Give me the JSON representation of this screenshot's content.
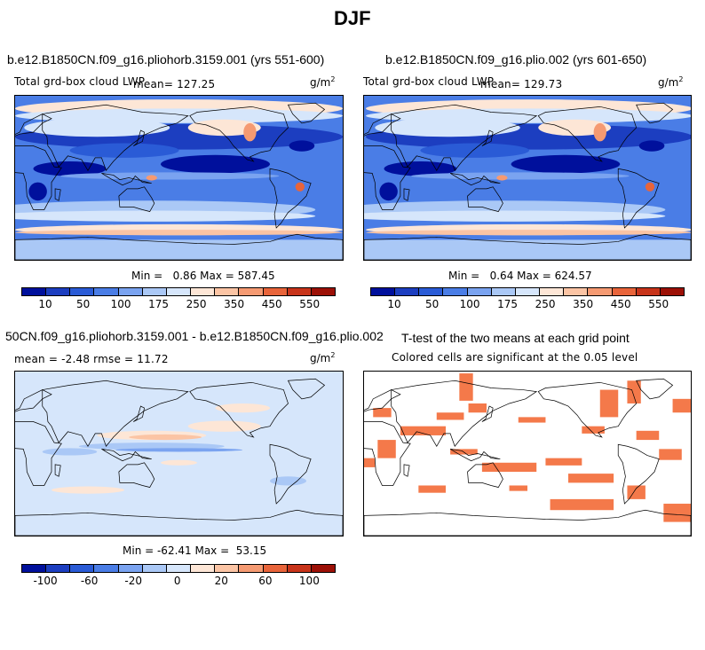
{
  "figure_title": "DJF",
  "colors": {
    "ramp": [
      "#00109c",
      "#1c3ec0",
      "#2a5bd6",
      "#4a7de6",
      "#7aa3f0",
      "#aac8f6",
      "#d6e6fb",
      "#fde6d6",
      "#fbc4a4",
      "#f59a72",
      "#e8643a",
      "#c8341a",
      "#9c1006"
    ],
    "significant": "#f4794a",
    "coast": "#000000"
  },
  "panels": {
    "p1": {
      "title": "b.e12.B1850CN.f09_g16.pliohorb.3159.001 (yrs 551-600)",
      "subtitle": "Total grd-box cloud LWP",
      "mean_text": "mean= 127.25",
      "units": "g/m",
      "units_exp": "2",
      "stats": "Min =   0.86 Max = 587.45",
      "colorbar_labels": [
        "10",
        "50",
        "100",
        "175",
        "250",
        "350",
        "450",
        "550"
      ]
    },
    "p2": {
      "title": "b.e12.B1850CN.f09_g16.plio.002 (yrs 601-650)",
      "subtitle": "Total grd-box cloud LWP",
      "mean_text": "mean= 129.73",
      "units": "g/m",
      "units_exp": "2",
      "stats": "Min =   0.64 Max = 624.57",
      "colorbar_labels": [
        "10",
        "50",
        "100",
        "175",
        "250",
        "350",
        "450",
        "550"
      ]
    },
    "p3": {
      "title": "50CN.f09_g16.pliohorb.3159.001 - b.e12.B1850CN.f09_g16.plio.002",
      "subtitle": "mean =  -2.48    rmse =  11.72",
      "units": "g/m",
      "units_exp": "2",
      "stats": "Min = -62.41 Max =  53.15",
      "colorbar_labels": [
        "-100",
        "-60",
        "-20",
        "0",
        "20",
        "60",
        "100"
      ]
    },
    "p4": {
      "title": "T-test of the two means at each grid point",
      "subtitle": "Colored cells are significant at the 0.05 level"
    }
  }
}
